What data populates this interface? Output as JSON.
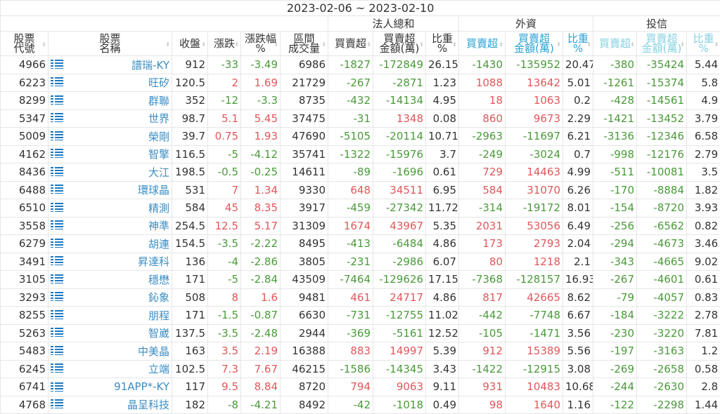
{
  "date_range": "2023-02-06 ~ 2023-02-10",
  "groups": {
    "institutional_total": "法人總和",
    "foreign": "外資",
    "trust": "投信"
  },
  "headers": [
    "股票\n代號",
    "股票\n名稱",
    "收盤",
    "漲跌",
    "漲跌幅\n%",
    "區間\n成交量",
    "買賣超",
    "買賣超\n金額(萬)",
    "比重\n%",
    "買賣超",
    "買賣超\n金額(萬)",
    "比重\n%",
    "買賣超",
    "買賣超\n金額(萬)",
    "比重\n%"
  ],
  "colors": {
    "up": "#e0575a",
    "down": "#4a9a3a",
    "link": "#3b8ec4",
    "foreign_header": "#2aa3d6",
    "trust_header": "#86d2e2"
  },
  "row_icon": "list-icon",
  "rows": [
    [
      "4966",
      "譜瑞-KY",
      "912",
      "-33",
      "-3.49",
      "6986",
      "-1827",
      "-172849",
      "26.15",
      "-1430",
      "-135952",
      "20.47",
      "-380",
      "-35424",
      "5.44"
    ],
    [
      "6223",
      "旺矽",
      "120.5",
      "2",
      "1.69",
      "21729",
      "-267",
      "-2871",
      "1.23",
      "1088",
      "13642",
      "5.01",
      "-1261",
      "-15374",
      "5.8"
    ],
    [
      "8299",
      "群聯",
      "352",
      "-12",
      "-3.3",
      "8735",
      "-432",
      "-14134",
      "4.95",
      "18",
      "1063",
      "0.2",
      "-428",
      "-14561",
      "4.9"
    ],
    [
      "5347",
      "世界",
      "98.7",
      "5.1",
      "5.45",
      "37475",
      "-31",
      "1348",
      "0.08",
      "860",
      "9673",
      "2.29",
      "-1421",
      "-13452",
      "3.79"
    ],
    [
      "5009",
      "榮剛",
      "39.7",
      "0.75",
      "1.93",
      "47690",
      "-5105",
      "-20114",
      "10.71",
      "-2963",
      "-11697",
      "6.21",
      "-3136",
      "-12346",
      "6.58"
    ],
    [
      "4162",
      "智擎",
      "116.5",
      "-5",
      "-4.12",
      "35741",
      "-1322",
      "-15976",
      "3.7",
      "-249",
      "-3024",
      "0.7",
      "-998",
      "-12176",
      "2.79"
    ],
    [
      "8436",
      "大江",
      "198.5",
      "-0.5",
      "-0.25",
      "14611",
      "-89",
      "-1696",
      "0.61",
      "729",
      "14463",
      "4.99",
      "-511",
      "-10081",
      "3.5"
    ],
    [
      "6488",
      "環球晶",
      "531",
      "7",
      "1.34",
      "9330",
      "648",
      "34511",
      "6.95",
      "584",
      "31070",
      "6.26",
      "-170",
      "-8884",
      "1.82"
    ],
    [
      "6510",
      "精測",
      "584",
      "45",
      "8.35",
      "3917",
      "-459",
      "-27342",
      "11.72",
      "-314",
      "-19172",
      "8.01",
      "-154",
      "-8720",
      "3.93"
    ],
    [
      "3558",
      "神準",
      "254.5",
      "12.5",
      "5.17",
      "31309",
      "1674",
      "43967",
      "5.35",
      "2031",
      "53056",
      "6.49",
      "-256",
      "-6562",
      "0.82"
    ],
    [
      "6279",
      "胡連",
      "154.5",
      "-3.5",
      "-2.22",
      "8495",
      "-413",
      "-6484",
      "4.86",
      "173",
      "2793",
      "2.04",
      "-294",
      "-4673",
      "3.46"
    ],
    [
      "3491",
      "昇達科",
      "136",
      "-4",
      "-2.86",
      "3805",
      "-231",
      "-2986",
      "6.07",
      "80",
      "1218",
      "2.1",
      "-343",
      "-4665",
      "9.02"
    ],
    [
      "3105",
      "穩懋",
      "171",
      "-5",
      "-2.84",
      "43509",
      "-7464",
      "-129626",
      "17.15",
      "-7368",
      "-128157",
      "16.93",
      "-267",
      "-4601",
      "0.61"
    ],
    [
      "3293",
      "鈊象",
      "508",
      "8",
      "1.6",
      "9481",
      "461",
      "24717",
      "4.86",
      "817",
      "42665",
      "8.62",
      "-79",
      "-4057",
      "0.83"
    ],
    [
      "8255",
      "朋程",
      "171",
      "-1.5",
      "-0.87",
      "6630",
      "-731",
      "-12755",
      "11.02",
      "-442",
      "-7748",
      "6.67",
      "-184",
      "-3222",
      "2.78"
    ],
    [
      "5263",
      "智崴",
      "137.5",
      "-3.5",
      "-2.48",
      "2944",
      "-369",
      "-5161",
      "12.52",
      "-105",
      "-1471",
      "3.56",
      "-230",
      "-3220",
      "7.81"
    ],
    [
      "5483",
      "中美晶",
      "163",
      "3.5",
      "2.19",
      "16388",
      "883",
      "14997",
      "5.39",
      "912",
      "15389",
      "5.56",
      "-197",
      "-3163",
      "1.2"
    ],
    [
      "6245",
      "立端",
      "102.5",
      "7.3",
      "7.67",
      "46215",
      "-1586",
      "-14345",
      "3.43",
      "-1422",
      "-12915",
      "3.08",
      "-269",
      "-2658",
      "0.58"
    ],
    [
      "6741",
      "91APP*-KY",
      "117",
      "9.5",
      "8.84",
      "8720",
      "794",
      "9063",
      "9.11",
      "931",
      "10483",
      "10.68",
      "-244",
      "-2630",
      "2.8"
    ],
    [
      "4768",
      "晶呈科技",
      "182",
      "-8",
      "-4.21",
      "8492",
      "-42",
      "-1018",
      "0.49",
      "98",
      "1640",
      "1.16",
      "-122",
      "-2298",
      "1.44"
    ]
  ]
}
